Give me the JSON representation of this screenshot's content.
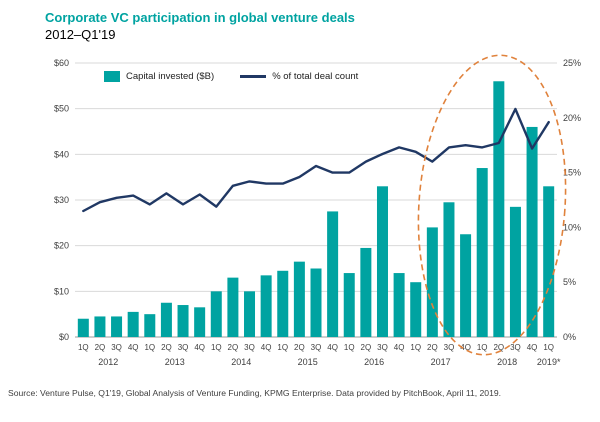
{
  "header": {
    "title": "Corporate VC participation in global venture deals",
    "subtitle": "2012–Q1'19"
  },
  "legend": {
    "capital": "Capital invested ($B)",
    "deal_count": "% of total deal count"
  },
  "source": "Source: Venture Pulse, Q1'19, Global Analysis of Venture Funding, KPMG Enterprise. Data provided by PitchBook, April 11, 2019.",
  "colors": {
    "teal": "#00A3A1",
    "navy": "#203864",
    "ellipse": "#E0823C",
    "grid": "#D9D9D9",
    "baseline": "#9B9B9B",
    "axis_text": "#404040"
  },
  "chart_data": {
    "type": "bar",
    "subtype": "bar+line combo, dual axis",
    "title": "Corporate VC participation in global venture deals",
    "subtitle": "2012–Q1'19",
    "categories": [
      "1Q",
      "2Q",
      "3Q",
      "4Q",
      "1Q",
      "2Q",
      "3Q",
      "4Q",
      "1Q",
      "2Q",
      "3Q",
      "4Q",
      "1Q",
      "2Q",
      "3Q",
      "4Q",
      "1Q",
      "2Q",
      "3Q",
      "4Q",
      "1Q",
      "2Q",
      "3Q",
      "4Q",
      "1Q",
      "2Q",
      "3Q",
      "4Q",
      "1Q"
    ],
    "year_groups": [
      {
        "label": "2012",
        "start": 0,
        "count": 4
      },
      {
        "label": "2013",
        "start": 4,
        "count": 4
      },
      {
        "label": "2014",
        "start": 8,
        "count": 4
      },
      {
        "label": "2015",
        "start": 12,
        "count": 4
      },
      {
        "label": "2016",
        "start": 16,
        "count": 4
      },
      {
        "label": "2017",
        "start": 20,
        "count": 4
      },
      {
        "label": "2018",
        "start": 24,
        "count": 4
      },
      {
        "label": "2019*",
        "start": 28,
        "count": 1
      }
    ],
    "series": [
      {
        "name": "Capital invested ($B)",
        "type": "bar",
        "axis": "left",
        "values": [
          4.0,
          4.5,
          4.5,
          5.5,
          5.0,
          7.5,
          7.0,
          6.5,
          10.0,
          13.0,
          10.0,
          13.5,
          14.5,
          16.5,
          15.0,
          27.5,
          14.0,
          19.5,
          33.0,
          14.0,
          12.0,
          24.0,
          29.5,
          22.5,
          37.0,
          56.0,
          28.5,
          46.0,
          33.0
        ]
      },
      {
        "name": "% of total deal count",
        "type": "line",
        "axis": "right",
        "values": [
          11.5,
          12.3,
          12.7,
          12.9,
          12.1,
          13.1,
          12.1,
          13.0,
          11.9,
          13.8,
          14.2,
          14.0,
          14.0,
          14.6,
          15.6,
          15.0,
          15.0,
          16.0,
          16.7,
          17.3,
          16.9,
          16.0,
          17.3,
          17.5,
          17.3,
          17.7,
          20.8,
          17.2,
          19.6
        ]
      }
    ],
    "left_axis": {
      "label": "Capital invested ($B)",
      "max": 60,
      "ticks": [
        0,
        10,
        20,
        30,
        40,
        50,
        60
      ],
      "labels": [
        "$0",
        "$10",
        "$20",
        "$30",
        "$40",
        "$50",
        "$60"
      ]
    },
    "right_axis": {
      "label": "% of total deal count",
      "max": 25,
      "ticks": [
        0,
        5,
        10,
        15,
        20,
        25
      ],
      "labels": [
        "0%",
        "5%",
        "10%",
        "15%",
        "20%",
        "25%"
      ]
    },
    "grid": "horizontal",
    "legend_position": "top-left inside plot",
    "annotation": {
      "type": "dashed-ellipse",
      "color": "#E0823C",
      "covers": "surge from mid-2017 through 1Q'19"
    }
  }
}
